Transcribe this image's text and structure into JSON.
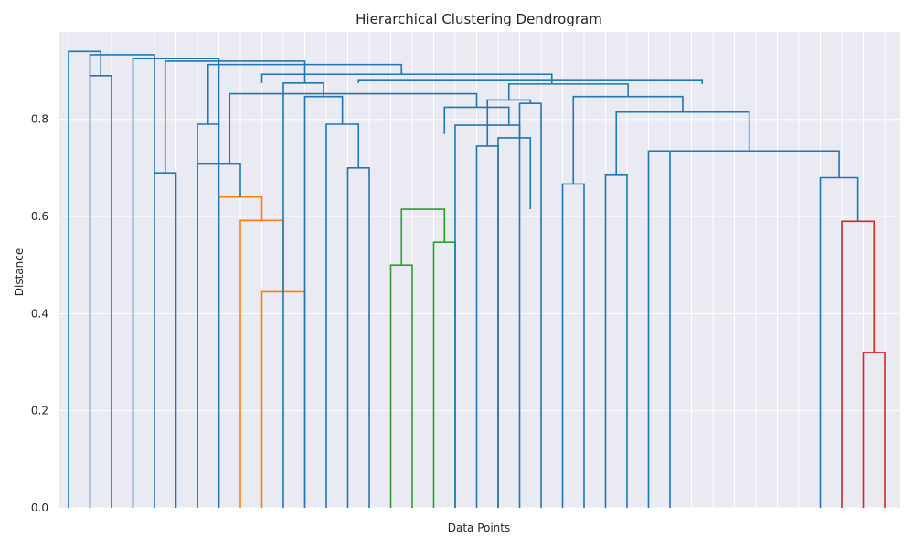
{
  "chart_data": {
    "type": "dendrogram",
    "title": "Hierarchical Clustering Dendrogram",
    "xlabel": "Data Points",
    "ylabel": "Distance",
    "ylim": [
      0.0,
      0.98
    ],
    "yticks": [
      0.0,
      0.2,
      0.4,
      0.6,
      0.8
    ],
    "ytick_labels": [
      "0.0",
      "0.2",
      "0.4",
      "0.6",
      "0.8"
    ],
    "xtick_labels_visible": false,
    "grid": true,
    "leaf_count": 39,
    "colors": {
      "background": "#eaeaf2",
      "grid": "#ffffff",
      "default": "#1f77b4",
      "cluster_orange": "#ff7f0e",
      "cluster_green": "#2ca02c",
      "cluster_red": "#d62728"
    },
    "links": [
      {
        "xl": 9.5,
        "xr": 11.5,
        "hl": 0.0,
        "hr": 0.0,
        "h": 0.445,
        "color": "orange"
      },
      {
        "xl": 8.5,
        "xr": 10.5,
        "hl": 0.0,
        "hr": 0.445,
        "h": 0.592,
        "color": "orange"
      },
      {
        "xl": 7.5,
        "xr": 9.5,
        "hl": 0.0,
        "hr": 0.592,
        "h": 0.64,
        "color": "orange"
      },
      {
        "xl": 6.5,
        "xr": 8.5,
        "hl": 0.0,
        "hr": 0.64,
        "h": 0.708,
        "color": "blue"
      },
      {
        "xl": 15.5,
        "xr": 16.5,
        "hl": 0.0,
        "hr": 0.0,
        "h": 0.5,
        "color": "green"
      },
      {
        "xl": 17.5,
        "xr": 18.5,
        "hl": 0.0,
        "hr": 0.0,
        "h": 0.547,
        "color": "green"
      },
      {
        "xl": 16.0,
        "xr": 18.0,
        "hl": 0.5,
        "hr": 0.547,
        "h": 0.615,
        "color": "green"
      },
      {
        "xl": 37.5,
        "xr": 38.5,
        "hl": 0.0,
        "hr": 0.0,
        "h": 0.32,
        "color": "red"
      },
      {
        "xl": 36.5,
        "xr": 38.0,
        "hl": 0.0,
        "hr": 0.32,
        "h": 0.59,
        "color": "red"
      },
      {
        "xl": 4.5,
        "xr": 5.5,
        "hl": 0.0,
        "hr": 0.0,
        "h": 0.69,
        "color": "blue"
      },
      {
        "xl": 1.5,
        "xr": 2.5,
        "hl": 0.0,
        "hr": 0.0,
        "h": 0.89,
        "color": "blue"
      },
      {
        "xl": 6.5,
        "xr": 7.5,
        "hl": 0.0,
        "hr": 0.0,
        "h": 0.79,
        "color": "blue"
      },
      {
        "xl": 13.5,
        "xr": 14.5,
        "hl": 0.0,
        "hr": 0.0,
        "h": 0.7,
        "color": "blue"
      },
      {
        "xl": 12.5,
        "xr": 14.0,
        "hl": 0.0,
        "hr": 0.7,
        "h": 0.79,
        "color": "blue"
      },
      {
        "xl": 11.5,
        "xr": 13.25,
        "hl": 0.0,
        "hr": 0.79,
        "h": 0.847,
        "color": "blue"
      },
      {
        "xl": 10.5,
        "xr": 12.375,
        "hl": 0.0,
        "hr": 0.847,
        "h": 0.875,
        "color": "blue"
      },
      {
        "xl": 19.5,
        "xr": 20.5,
        "hl": 0.0,
        "hr": 0.0,
        "h": 0.745,
        "color": "blue"
      },
      {
        "xl": 21.5,
        "xr": 22.5,
        "hl": 0.0,
        "hr": 0.0,
        "h": 0.833,
        "color": "blue"
      },
      {
        "xl": 20.0,
        "xr": 22.0,
        "hl": 0.745,
        "hr": 0.833,
        "h": 0.84,
        "color": "blue"
      },
      {
        "xl": 23.5,
        "xr": 24.5,
        "hl": 0.0,
        "hr": 0.0,
        "h": 0.667,
        "color": "blue"
      },
      {
        "xl": 25.5,
        "xr": 26.5,
        "hl": 0.0,
        "hr": 0.0,
        "h": 0.685,
        "color": "blue"
      },
      {
        "xl": 27.5,
        "xr": 28.5,
        "hl": 0.0,
        "hr": 0.0,
        "h": 0.735,
        "color": "blue"
      },
      {
        "xl": 35.5,
        "xr": 37.25,
        "hl": 0.0,
        "hr": 0.59,
        "h": 0.68,
        "color": "blue"
      },
      {
        "xl": 28.0,
        "xr": 36.375,
        "hl": 0.735,
        "hr": 0.68,
        "h": 0.735,
        "color": "blue"
      },
      {
        "xl": 26.0,
        "xr": 32.1875,
        "hl": 0.685,
        "hr": 0.735,
        "h": 0.815,
        "color": "blue"
      },
      {
        "xl": 24.0,
        "xr": 29.09375,
        "hl": 0.667,
        "hr": 0.815,
        "h": 0.847,
        "color": "blue"
      },
      {
        "xl": 21.0,
        "xr": 26.546875,
        "hl": 0.84,
        "hr": 0.847,
        "h": 0.873,
        "color": "blue"
      }
    ]
  }
}
